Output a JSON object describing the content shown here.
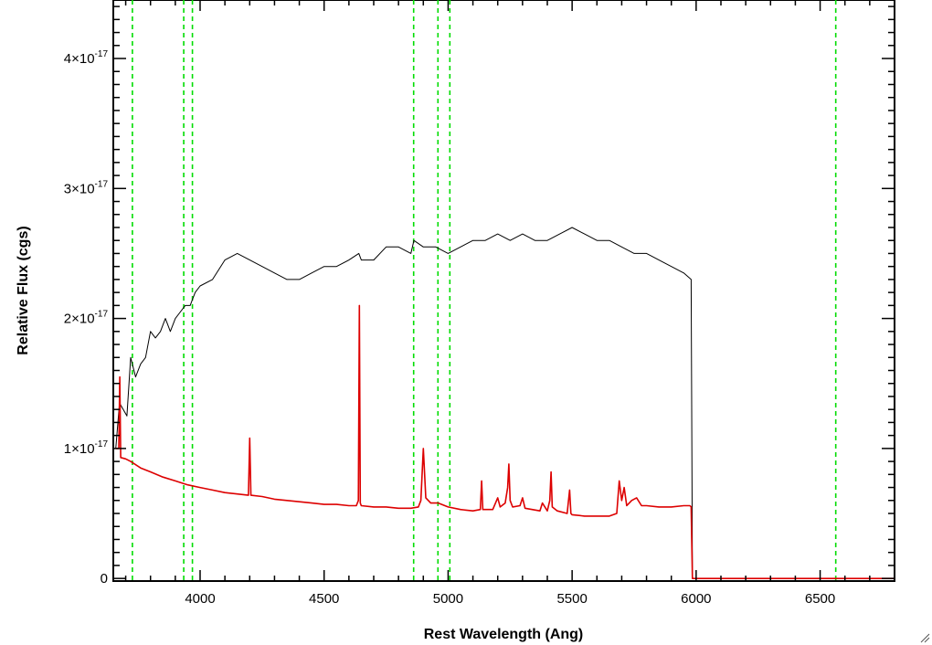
{
  "chart_data": {
    "type": "line",
    "title": "",
    "xlabel": "Rest Wavelength (Ang)",
    "ylabel": "Relative Flux (cgs)",
    "xlim": [
      3650,
      6800
    ],
    "ylim": [
      -2e-19,
      4.45e-17
    ],
    "x_ticks": [
      4000,
      4500,
      5000,
      5500,
      6000,
      6500
    ],
    "x_tick_labels": [
      "4000",
      "4500",
      "5000",
      "5500",
      "6000",
      "6500"
    ],
    "y_ticks": [
      {
        "value": 0,
        "mantissa": "0",
        "exponent": ""
      },
      {
        "value": 1e-17,
        "mantissa": "1×10",
        "exponent": "-17"
      },
      {
        "value": 2e-17,
        "mantissa": "2×10",
        "exponent": "-17"
      },
      {
        "value": 3e-17,
        "mantissa": "3×10",
        "exponent": "-17"
      },
      {
        "value": 4e-17,
        "mantissa": "4×10",
        "exponent": "-17"
      }
    ],
    "grid": false,
    "legend": "none",
    "vertical_markers": {
      "style": "dashed",
      "color": "#00dd00",
      "x": [
        3727,
        3934,
        3969,
        4861,
        4959,
        5007,
        6563
      ]
    },
    "series": [
      {
        "color": "#000000",
        "description": "observed spectrum (noisy)",
        "x": [
          3660,
          3675,
          3690,
          3705,
          3720,
          3740,
          3760,
          3780,
          3800,
          3820,
          3840,
          3860,
          3880,
          3900,
          3920,
          3940,
          3960,
          3980,
          4000,
          4050,
          4100,
          4150,
          4200,
          4250,
          4300,
          4350,
          4400,
          4450,
          4500,
          4550,
          4600,
          4640,
          4650,
          4700,
          4750,
          4800,
          4850,
          4862,
          4900,
          4950,
          5000,
          5050,
          5100,
          5150,
          5200,
          5250,
          5300,
          5350,
          5400,
          5450,
          5500,
          5550,
          5600,
          5650,
          5700,
          5750,
          5800,
          5850,
          5900,
          5950,
          5980,
          5985
        ],
        "y": [
          1e-17,
          1.35e-17,
          1.3e-17,
          1.25e-17,
          1.7e-17,
          1.55e-17,
          1.65e-17,
          1.7e-17,
          1.9e-17,
          1.85e-17,
          1.9e-17,
          2e-17,
          1.9e-17,
          2e-17,
          2.05e-17,
          2.1e-17,
          2.1e-17,
          2.2e-17,
          2.25e-17,
          2.3e-17,
          2.45e-17,
          2.5e-17,
          2.45e-17,
          2.4e-17,
          2.35e-17,
          2.3e-17,
          2.3e-17,
          2.35e-17,
          2.4e-17,
          2.4e-17,
          2.45e-17,
          2.5e-17,
          2.45e-17,
          2.45e-17,
          2.55e-17,
          2.55e-17,
          2.5e-17,
          2.6e-17,
          2.55e-17,
          2.55e-17,
          2.5e-17,
          2.55e-17,
          2.6e-17,
          2.6e-17,
          2.65e-17,
          2.6e-17,
          2.65e-17,
          2.6e-17,
          2.6e-17,
          2.65e-17,
          2.7e-17,
          2.65e-17,
          2.6e-17,
          2.6e-17,
          2.55e-17,
          2.5e-17,
          2.5e-17,
          2.45e-17,
          2.4e-17,
          2.35e-17,
          2.3e-17,
          0.0
        ]
      },
      {
        "color": "#dd0000",
        "description": "model / smoothed spectrum",
        "x": [
          3660,
          3672,
          3676,
          3680,
          3700,
          3720,
          3760,
          3800,
          3850,
          3900,
          3950,
          4000,
          4050,
          4100,
          4150,
          4195,
          4200,
          4205,
          4250,
          4300,
          4350,
          4400,
          4450,
          4500,
          4550,
          4600,
          4630,
          4638,
          4642,
          4646,
          4650,
          4700,
          4750,
          4800,
          4850,
          4880,
          4890,
          4900,
          4910,
          4930,
          4960,
          5000,
          5050,
          5100,
          5130,
          5135,
          5140,
          5180,
          5200,
          5210,
          5230,
          5240,
          5245,
          5250,
          5260,
          5290,
          5300,
          5310,
          5370,
          5380,
          5400,
          5410,
          5415,
          5420,
          5440,
          5480,
          5490,
          5495,
          5500,
          5550,
          5600,
          5650,
          5680,
          5690,
          5700,
          5710,
          5720,
          5740,
          5760,
          5780,
          5800,
          5850,
          5900,
          5950,
          5975,
          5980,
          5985,
          6000,
          6200,
          6400,
          6600,
          6800
        ],
        "y": [
          1e-17,
          1e-17,
          1.55e-17,
          9.3e-18,
          9.2e-18,
          9e-18,
          8.5e-18,
          8.2e-18,
          7.8e-18,
          7.5e-18,
          7.2e-18,
          7e-18,
          6.8e-18,
          6.6e-18,
          6.5e-18,
          6.4e-18,
          1.08e-17,
          6.4e-18,
          6.3e-18,
          6.1e-18,
          6e-18,
          5.9e-18,
          5.8e-18,
          5.7e-18,
          5.7e-18,
          5.6e-18,
          5.6e-18,
          6e-18,
          2.1e-17,
          5.8e-18,
          5.6e-18,
          5.5e-18,
          5.5e-18,
          5.4e-18,
          5.4e-18,
          5.5e-18,
          6e-18,
          1e-17,
          6.2e-18,
          5.8e-18,
          5.8e-18,
          5.5e-18,
          5.3e-18,
          5.2e-18,
          5.3e-18,
          7.5e-18,
          5.3e-18,
          5.3e-18,
          6.2e-18,
          5.5e-18,
          5.8e-18,
          7e-18,
          8.8e-18,
          6e-18,
          5.5e-18,
          5.6e-18,
          6.2e-18,
          5.4e-18,
          5.2e-18,
          5.8e-18,
          5.2e-18,
          6e-18,
          8.2e-18,
          5.5e-18,
          5.2e-18,
          5e-18,
          6.8e-18,
          5e-18,
          4.9e-18,
          4.8e-18,
          4.8e-18,
          4.8e-18,
          5e-18,
          7.5e-18,
          6e-18,
          7e-18,
          5.6e-18,
          6e-18,
          6.2e-18,
          5.6e-18,
          5.6e-18,
          5.5e-18,
          5.5e-18,
          5.6e-18,
          5.6e-18,
          5.5e-18,
          0.0,
          0.0,
          0.0,
          0.0,
          0.0,
          0.0
        ]
      }
    ]
  }
}
